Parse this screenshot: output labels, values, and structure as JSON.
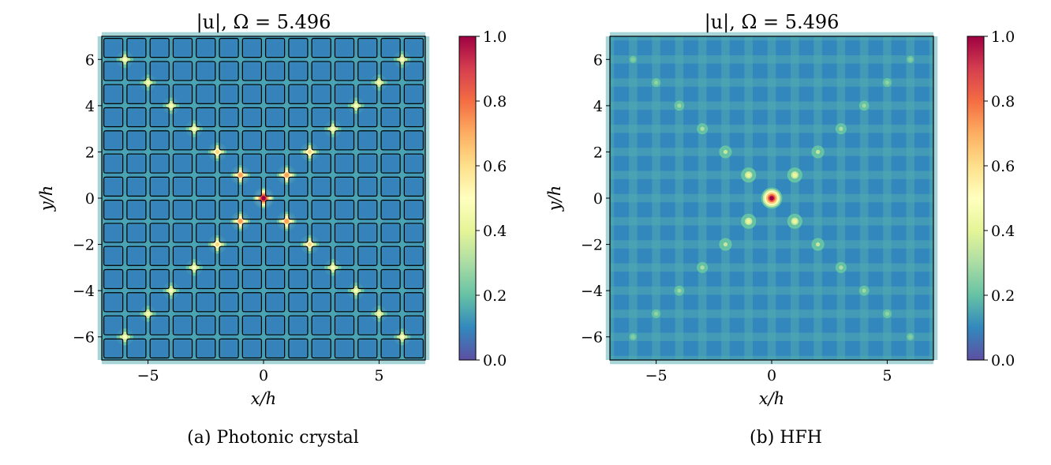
{
  "figure": {
    "captions": [
      "(a) Photonic crystal",
      "(b) HFH"
    ]
  },
  "chart_data": [
    {
      "type": "heatmap",
      "title": "|u|, Ω = 5.496",
      "xlabel": "x/h",
      "ylabel": "y/h",
      "xlim": [
        -7,
        7
      ],
      "ylim": [
        -7,
        7
      ],
      "xticks": [
        -5,
        0,
        5
      ],
      "xtick_labels": [
        "−5",
        "0",
        "5"
      ],
      "yticks": [
        -6,
        -4,
        -2,
        0,
        2,
        4,
        6
      ],
      "ytick_labels": [
        "−6",
        "−4",
        "−2",
        "0",
        "2",
        "4",
        "6"
      ],
      "colorbar": {
        "range": [
          0.0,
          1.0
        ],
        "ticks": [
          0.0,
          0.2,
          0.4,
          0.6,
          0.8,
          1.0
        ],
        "tick_labels": [
          "0.0",
          "0.2",
          "0.4",
          "0.6",
          "0.8",
          "1.0"
        ],
        "colormap": "Spectral_r"
      },
      "lattice_inclusions": {
        "shape": "square",
        "rows": 14,
        "cols": 14,
        "pitch": 1
      },
      "peaks": [
        {
          "x": 0,
          "y": 0,
          "v": 1.0
        },
        {
          "x": 1,
          "y": 1,
          "v": 0.72
        },
        {
          "x": -1,
          "y": 1,
          "v": 0.72
        },
        {
          "x": 1,
          "y": -1,
          "v": 0.72
        },
        {
          "x": -1,
          "y": -1,
          "v": 0.72
        },
        {
          "x": 2,
          "y": 2,
          "v": 0.62
        },
        {
          "x": -2,
          "y": 2,
          "v": 0.62
        },
        {
          "x": 2,
          "y": -2,
          "v": 0.62
        },
        {
          "x": -2,
          "y": -2,
          "v": 0.62
        },
        {
          "x": 3,
          "y": 3,
          "v": 0.5
        },
        {
          "x": -3,
          "y": 3,
          "v": 0.5
        },
        {
          "x": 3,
          "y": -3,
          "v": 0.5
        },
        {
          "x": -3,
          "y": -3,
          "v": 0.5
        },
        {
          "x": 4,
          "y": 4,
          "v": 0.48
        },
        {
          "x": -4,
          "y": 4,
          "v": 0.48
        },
        {
          "x": 4,
          "y": -4,
          "v": 0.48
        },
        {
          "x": -4,
          "y": -4,
          "v": 0.48
        },
        {
          "x": 5,
          "y": 5,
          "v": 0.46
        },
        {
          "x": -5,
          "y": 5,
          "v": 0.46
        },
        {
          "x": 5,
          "y": -5,
          "v": 0.46
        },
        {
          "x": -5,
          "y": -5,
          "v": 0.46
        },
        {
          "x": 6,
          "y": 6,
          "v": 0.5
        },
        {
          "x": -6,
          "y": 6,
          "v": 0.5
        },
        {
          "x": 6,
          "y": -6,
          "v": 0.5
        },
        {
          "x": -6,
          "y": -6,
          "v": 0.5
        }
      ]
    },
    {
      "type": "heatmap",
      "title": "|u|, Ω = 5.496",
      "xlabel": "x/h",
      "ylabel": "y/h",
      "xlim": [
        -7,
        7
      ],
      "ylim": [
        -7,
        7
      ],
      "xticks": [
        -5,
        0,
        5
      ],
      "xtick_labels": [
        "−5",
        "0",
        "5"
      ],
      "yticks": [
        -6,
        -4,
        -2,
        0,
        2,
        4,
        6
      ],
      "ytick_labels": [
        "−6",
        "−4",
        "−2",
        "0",
        "2",
        "4",
        "6"
      ],
      "colorbar": {
        "range": [
          0.0,
          1.0
        ],
        "ticks": [
          0.0,
          0.2,
          0.4,
          0.6,
          0.8,
          1.0
        ],
        "tick_labels": [
          "0.0",
          "0.2",
          "0.4",
          "0.6",
          "0.8",
          "1.0"
        ],
        "colormap": "Spectral_r"
      },
      "peaks": [
        {
          "x": 0,
          "y": 0,
          "v": 1.0
        },
        {
          "x": 1,
          "y": 1,
          "v": 0.42
        },
        {
          "x": -1,
          "y": 1,
          "v": 0.42
        },
        {
          "x": 1,
          "y": -1,
          "v": 0.42
        },
        {
          "x": -1,
          "y": -1,
          "v": 0.42
        },
        {
          "x": 2,
          "y": 2,
          "v": 0.34
        },
        {
          "x": -2,
          "y": 2,
          "v": 0.34
        },
        {
          "x": 2,
          "y": -2,
          "v": 0.34
        },
        {
          "x": -2,
          "y": -2,
          "v": 0.34
        },
        {
          "x": 3,
          "y": 3,
          "v": 0.3
        },
        {
          "x": -3,
          "y": 3,
          "v": 0.3
        },
        {
          "x": 3,
          "y": -3,
          "v": 0.3
        },
        {
          "x": -3,
          "y": -3,
          "v": 0.3
        },
        {
          "x": 4,
          "y": 4,
          "v": 0.28
        },
        {
          "x": -4,
          "y": 4,
          "v": 0.28
        },
        {
          "x": 4,
          "y": -4,
          "v": 0.28
        },
        {
          "x": -4,
          "y": -4,
          "v": 0.28
        },
        {
          "x": 5,
          "y": 5,
          "v": 0.26
        },
        {
          "x": -5,
          "y": 5,
          "v": 0.26
        },
        {
          "x": 5,
          "y": -5,
          "v": 0.26
        },
        {
          "x": -5,
          "y": -5,
          "v": 0.26
        },
        {
          "x": 6,
          "y": 6,
          "v": 0.24
        },
        {
          "x": -6,
          "y": 6,
          "v": 0.24
        },
        {
          "x": 6,
          "y": -6,
          "v": 0.24
        },
        {
          "x": -6,
          "y": -6,
          "v": 0.24
        }
      ]
    }
  ]
}
